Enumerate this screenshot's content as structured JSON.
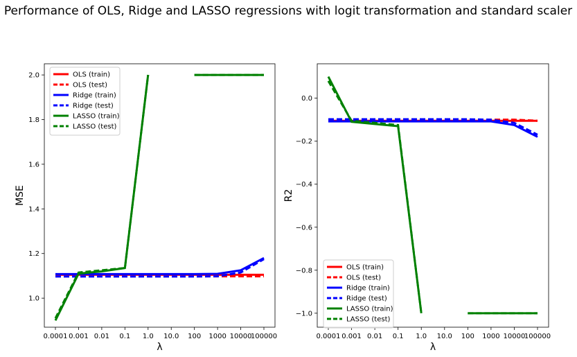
{
  "figure": {
    "title": "Performance of OLS, Ridge and LASSO regressions with logit transformation and standard scaler"
  },
  "chart_data": [
    {
      "type": "line",
      "xlabel": "λ",
      "ylabel": "MSE",
      "ylim": [
        0.87,
        2.05
      ],
      "yticks": [
        "1.0",
        "1.2",
        "1.4",
        "1.6",
        "1.8",
        "2.0"
      ],
      "x_categories": [
        "0.0001",
        "0.001",
        "0.01",
        "0.1",
        "1.0",
        "10.0",
        "100",
        "1000",
        "10000",
        "100000"
      ],
      "legend_position": "top-left",
      "series": [
        {
          "name": "OLS (train)",
          "color": "#ff0000",
          "dash": "solid",
          "values": [
            1.105,
            1.105,
            1.105,
            1.105,
            1.105,
            1.105,
            1.105,
            1.105,
            1.105,
            1.105
          ]
        },
        {
          "name": "OLS (test)",
          "color": "#ff0000",
          "dash": "dashed",
          "values": [
            1.098,
            1.098,
            1.098,
            1.098,
            1.098,
            1.098,
            1.098,
            1.098,
            1.098,
            1.098
          ]
        },
        {
          "name": "Ridge (train)",
          "color": "#0000ff",
          "dash": "solid",
          "values": [
            1.108,
            1.108,
            1.108,
            1.108,
            1.108,
            1.108,
            1.108,
            1.109,
            1.125,
            1.18
          ]
        },
        {
          "name": "Ridge (test)",
          "color": "#0000ff",
          "dash": "dashed",
          "values": [
            1.097,
            1.097,
            1.097,
            1.097,
            1.097,
            1.097,
            1.097,
            1.098,
            1.115,
            1.175
          ]
        },
        {
          "name": "LASSO (train)",
          "color": "#008000",
          "dash": "solid",
          "values": [
            0.9,
            1.11,
            1.12,
            1.135,
            2.0,
            null,
            2.0,
            2.0,
            2.0,
            2.0
          ]
        },
        {
          "name": "LASSO (test)",
          "color": "#008000",
          "dash": "dashed",
          "values": [
            0.91,
            1.115,
            1.125,
            1.135,
            2.0,
            null,
            2.0,
            2.0,
            2.0,
            2.0
          ]
        }
      ]
    },
    {
      "type": "line",
      "xlabel": "λ",
      "ylabel": "R2",
      "ylim": [
        -1.065,
        0.16
      ],
      "yticks": [
        "0.0",
        "−0.2",
        "−0.4",
        "−0.6",
        "−0.8",
        "−1.0"
      ],
      "ytick_values": [
        0.0,
        -0.2,
        -0.4,
        -0.6,
        -0.8,
        -1.0
      ],
      "x_categories": [
        "0.0001",
        "0.001",
        "0.01",
        "0.1",
        "1.0",
        "10.0",
        "100",
        "1000",
        "10000",
        "100000"
      ],
      "legend_position": "bottom-left",
      "series": [
        {
          "name": "OLS (train)",
          "color": "#ff0000",
          "dash": "solid",
          "values": [
            -0.105,
            -0.105,
            -0.105,
            -0.105,
            -0.105,
            -0.105,
            -0.105,
            -0.105,
            -0.105,
            -0.105
          ]
        },
        {
          "name": "OLS (test)",
          "color": "#ff0000",
          "dash": "dashed",
          "values": [
            -0.1,
            -0.1,
            -0.1,
            -0.1,
            -0.1,
            -0.1,
            -0.1,
            -0.1,
            -0.1,
            -0.105
          ]
        },
        {
          "name": "Ridge (train)",
          "color": "#0000ff",
          "dash": "solid",
          "values": [
            -0.108,
            -0.108,
            -0.108,
            -0.108,
            -0.108,
            -0.108,
            -0.108,
            -0.108,
            -0.125,
            -0.18
          ]
        },
        {
          "name": "Ridge (test)",
          "color": "#0000ff",
          "dash": "dashed",
          "values": [
            -0.098,
            -0.098,
            -0.098,
            -0.098,
            -0.098,
            -0.098,
            -0.098,
            -0.1,
            -0.115,
            -0.17
          ]
        },
        {
          "name": "LASSO (train)",
          "color": "#008000",
          "dash": "solid",
          "values": [
            0.1,
            -0.11,
            -0.12,
            -0.13,
            -1.0,
            null,
            -1.0,
            -1.0,
            -1.0,
            -1.0
          ]
        },
        {
          "name": "LASSO (test)",
          "color": "#008000",
          "dash": "dashed",
          "values": [
            0.08,
            -0.105,
            -0.115,
            -0.125,
            -1.0,
            null,
            -1.0,
            -1.0,
            -1.0,
            -1.0
          ]
        }
      ]
    }
  ]
}
